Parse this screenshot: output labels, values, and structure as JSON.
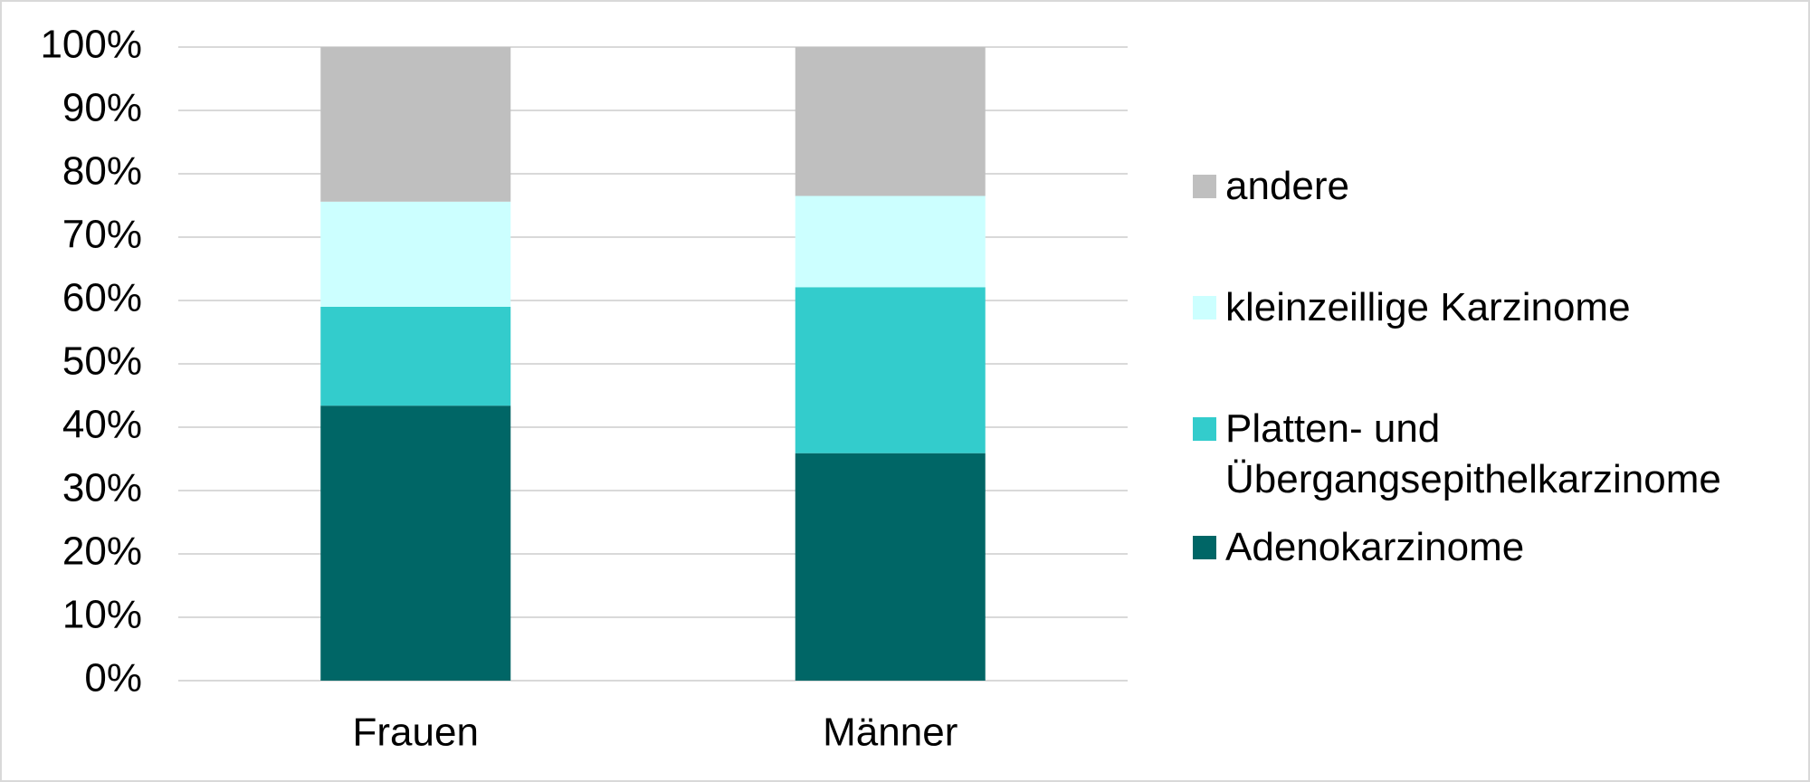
{
  "chart_data": {
    "type": "stacked_bar",
    "categories": [
      "Frauen",
      "Männer"
    ],
    "series": [
      {
        "name": "Adenokarzinome",
        "color": "#006666",
        "values": [
          43.4,
          35.9
        ]
      },
      {
        "name": "Platten- und Übergangsepithelkarzinome",
        "color": "#33cccc",
        "values": [
          15.6,
          26.2
        ]
      },
      {
        "name": "kleinzeillige Karzinome",
        "color": "#ccffff",
        "values": [
          16.6,
          14.4
        ]
      },
      {
        "name": "andere",
        "color": "#bfbfbf",
        "values": [
          24.4,
          23.5
        ]
      }
    ],
    "ylim": [
      0,
      100
    ],
    "yticks": [
      {
        "value": 0,
        "label": "0%"
      },
      {
        "value": 10,
        "label": "10%"
      },
      {
        "value": 20,
        "label": "20%"
      },
      {
        "value": 30,
        "label": "30%"
      },
      {
        "value": 40,
        "label": "40%"
      },
      {
        "value": 50,
        "label": "50%"
      },
      {
        "value": 60,
        "label": "60%"
      },
      {
        "value": 70,
        "label": "70%"
      },
      {
        "value": 80,
        "label": "80%"
      },
      {
        "value": 90,
        "label": "90%"
      },
      {
        "value": 100,
        "label": "100%"
      }
    ],
    "grid": true,
    "legend": "right"
  }
}
